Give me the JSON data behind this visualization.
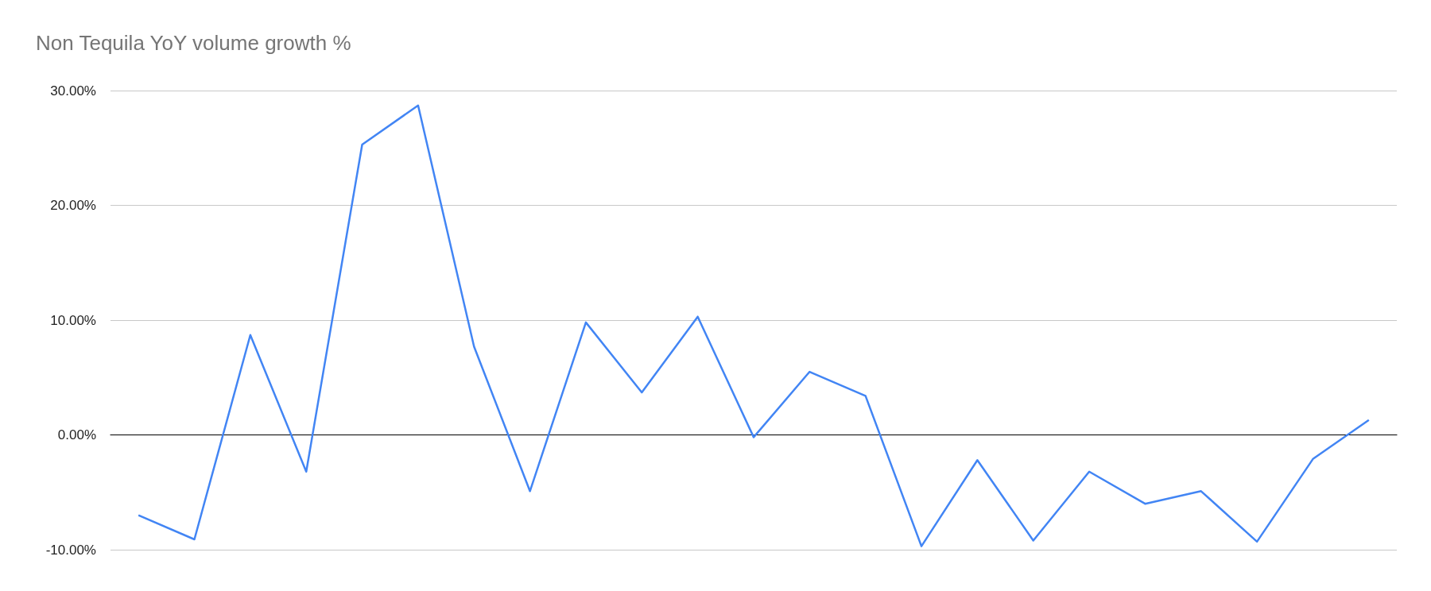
{
  "chart_data": {
    "type": "line",
    "title": "Non Tequila YoY volume growth %",
    "categories": [
      null,
      null,
      null,
      null,
      null,
      null,
      null,
      null,
      null,
      null,
      null,
      null,
      null,
      null,
      null,
      null,
      null,
      null,
      null,
      null,
      null,
      null,
      null
    ],
    "series": [
      {
        "color": "#4285f4",
        "values": [
          -7.0,
          -9.1,
          8.7,
          -3.2,
          25.3,
          28.7,
          7.7,
          -4.9,
          9.8,
          3.7,
          10.3,
          -0.2,
          5.5,
          3.4,
          -9.7,
          -2.2,
          -9.2,
          -3.2,
          -6.0,
          -4.9,
          -9.3,
          -2.1,
          1.3
        ]
      }
    ],
    "ylim": [
      -10,
      30
    ],
    "yticks": [
      {
        "value": -10,
        "label": "-10.00%"
      },
      {
        "value": 0,
        "label": "0.00%"
      },
      {
        "value": 10,
        "label": "10.00%"
      },
      {
        "value": 20,
        "label": "20.00%"
      },
      {
        "value": 30,
        "label": "30.00%"
      }
    ],
    "grid": "y",
    "marker": "none",
    "line_style": "solid",
    "tick_labels": "y"
  }
}
